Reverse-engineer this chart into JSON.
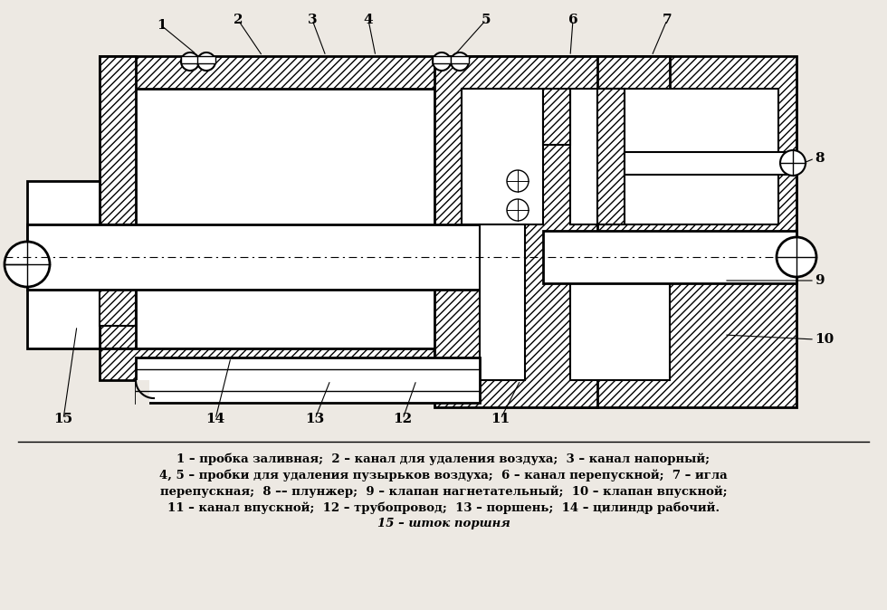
{
  "bg_color": "#ede9e3",
  "line_color": "#000000",
  "legend_lines": [
    "1 – пробка заливная;  2 – канал для удаления воздуха;  3 – канал напорный;",
    "4, 5 – пробки для удаления пузырьков воздуха;  6 – канал перепускной;  7 – игла",
    "перепускная;  8 –– плунжер;  9 – клапан нагнетательный;  10 – клапан впускной;",
    "11 – канал впускной;  12 – трубопровод;  13 – поршень;  14 – цилиндр рабочий.",
    "15 – шток поршня"
  ]
}
